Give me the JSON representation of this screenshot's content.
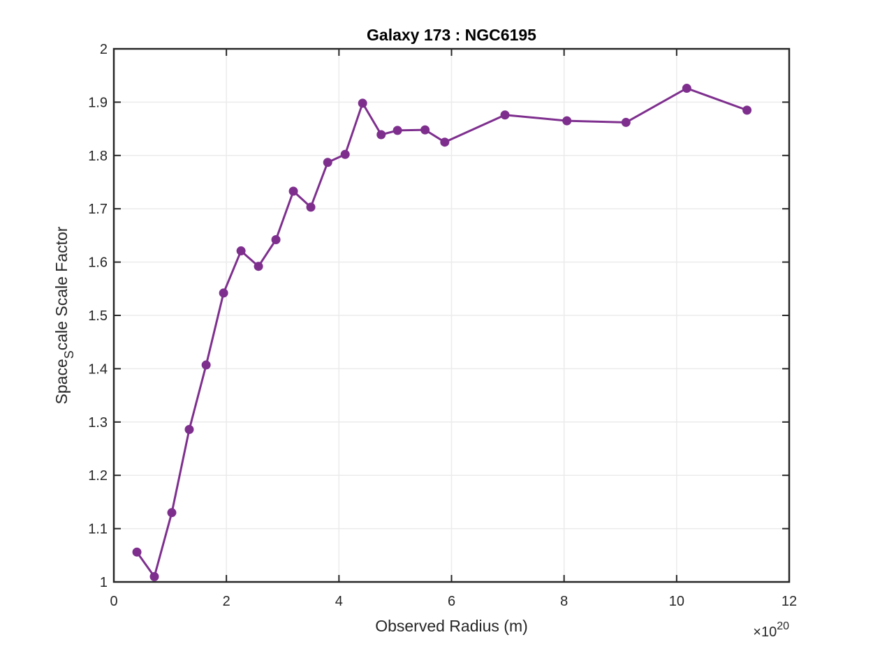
{
  "chart_data": {
    "type": "line",
    "title": "Galaxy 173 : NGC6195",
    "xlabel": "Observed Radius (m)",
    "ylabel_main": "Space",
    "ylabel_subscript": "S",
    "ylabel_rest": "cale Scale Factor",
    "x_exponent_prefix": "×10",
    "x_exponent_power": "20",
    "xlim": [
      0,
      12
    ],
    "ylim": [
      1,
      2
    ],
    "xticks": [
      0,
      2,
      4,
      6,
      8,
      10,
      12
    ],
    "xtick_labels": [
      "0",
      "2",
      "4",
      "6",
      "8",
      "10",
      "12"
    ],
    "yticks": [
      1,
      1.1,
      1.2,
      1.3,
      1.4,
      1.5,
      1.6,
      1.7,
      1.8,
      1.9,
      2
    ],
    "ytick_labels": [
      "1",
      "1.1",
      "1.2",
      "1.3",
      "1.4",
      "1.5",
      "1.6",
      "1.7",
      "1.8",
      "1.9",
      "2"
    ],
    "grid": true,
    "series": [
      {
        "color": "#7E2F8E",
        "x": [
          0.41,
          0.72,
          1.03,
          1.34,
          1.64,
          1.95,
          2.26,
          2.57,
          2.88,
          3.19,
          3.5,
          3.8,
          4.11,
          4.42,
          4.75,
          5.04,
          5.53,
          5.88,
          6.95,
          8.05,
          9.1,
          10.18,
          11.25
        ],
        "y": [
          1.056,
          1.01,
          1.13,
          1.286,
          1.407,
          1.542,
          1.621,
          1.592,
          1.642,
          1.733,
          1.703,
          1.787,
          1.802,
          1.898,
          1.839,
          1.847,
          1.848,
          1.825,
          1.876,
          1.865,
          1.862,
          1.926,
          1.885
        ]
      }
    ]
  }
}
